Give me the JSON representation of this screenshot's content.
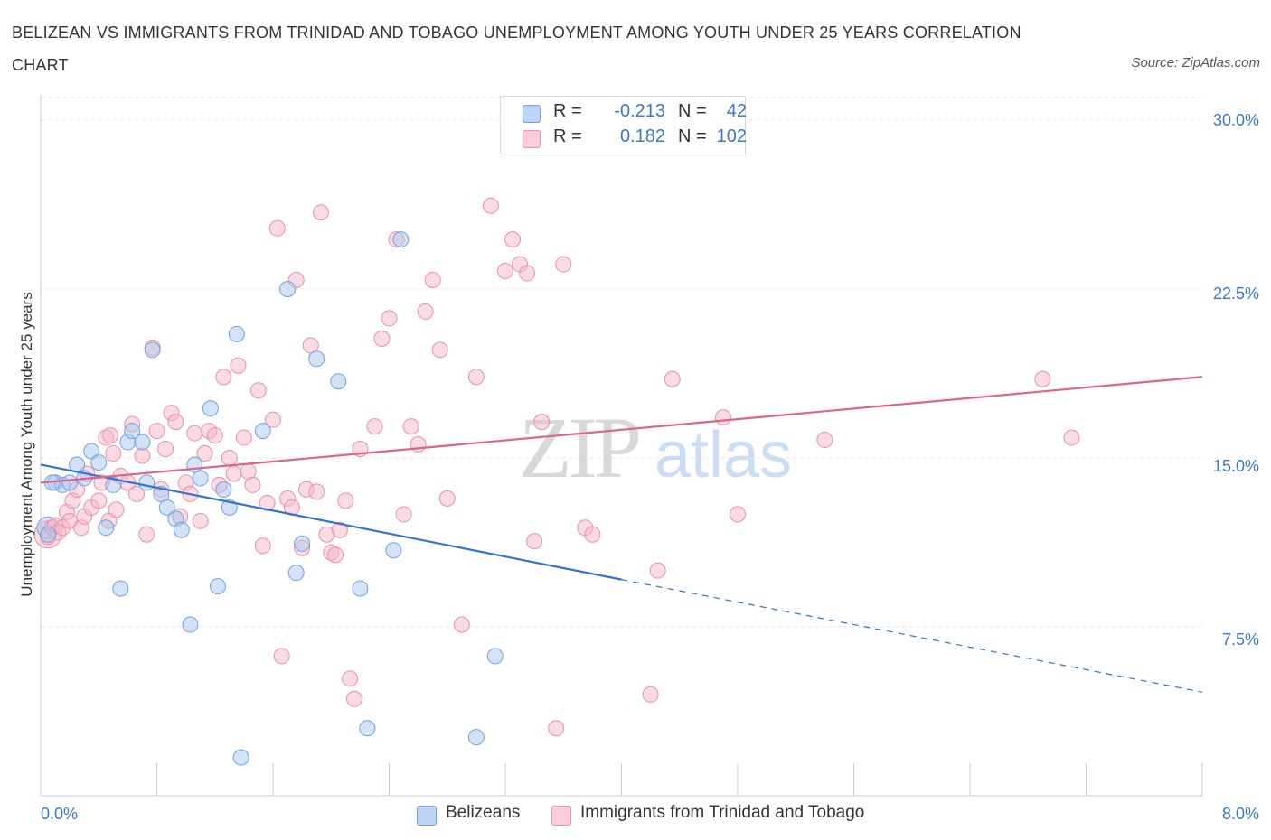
{
  "title": "BELIZEAN VS IMMIGRANTS FROM TRINIDAD AND TOBAGO UNEMPLOYMENT AMONG YOUTH UNDER 25 YEARS CORRELATION CHART",
  "source": "Source: ZipAtlas.com",
  "watermark": {
    "zip": "ZIP",
    "atlas": "atlas"
  },
  "legend": {
    "rows": [
      {
        "r_label": "R =",
        "r_value": "-0.213",
        "n_label": "N =",
        "n_value": "42",
        "color": "#a8c8f0"
      },
      {
        "r_label": "R =",
        "r_value": "0.182",
        "n_label": "N =",
        "n_value": "102",
        "color": "#f5b8c8"
      }
    ]
  },
  "chart_data": {
    "type": "scatter",
    "title": "BELIZEAN VS IMMIGRANTS FROM TRINIDAD AND TOBAGO UNEMPLOYMENT AMONG YOUTH UNDER 25 YEARS CORRELATION CHART",
    "ylabel": "Unemployment Among Youth under 25 years",
    "xlabel": "",
    "xlim": [
      0,
      8
    ],
    "ylim": [
      0,
      30
    ],
    "x_tick_labels": [
      "0.0%",
      "8.0%"
    ],
    "y_tick_labels": [
      "30.0%",
      "22.5%",
      "15.0%",
      "7.5%"
    ],
    "y_ticks": [
      30,
      22.5,
      15,
      7.5
    ],
    "grid": true,
    "legend_position": "top-center",
    "series": [
      {
        "name": "Belizeans",
        "color": "#6fa1e6",
        "fill": "#a8c8f0",
        "trend": {
          "x": [
            0.0,
            4.0
          ],
          "y": [
            14.7,
            9.6
          ],
          "dashed_to": [
            8.0,
            4.6
          ],
          "color": "#2f74d0"
        },
        "points": [
          [
            0.05,
            11.6
          ],
          [
            0.1,
            13.9
          ],
          [
            0.15,
            13.8
          ],
          [
            0.2,
            13.9
          ],
          [
            0.25,
            14.7
          ],
          [
            0.3,
            14.1
          ],
          [
            0.35,
            15.3
          ],
          [
            0.4,
            14.8
          ],
          [
            0.45,
            11.9
          ],
          [
            0.5,
            13.8
          ],
          [
            0.55,
            9.2
          ],
          [
            0.6,
            15.7
          ],
          [
            0.63,
            16.2
          ],
          [
            0.7,
            15.7
          ],
          [
            0.73,
            13.9
          ],
          [
            0.77,
            19.8
          ],
          [
            0.83,
            13.4
          ],
          [
            0.87,
            12.8
          ],
          [
            0.93,
            12.3
          ],
          [
            0.97,
            11.8
          ],
          [
            1.03,
            7.6
          ],
          [
            1.06,
            14.7
          ],
          [
            1.1,
            14.1
          ],
          [
            1.17,
            17.2
          ],
          [
            1.22,
            9.3
          ],
          [
            1.26,
            13.6
          ],
          [
            1.3,
            12.8
          ],
          [
            1.35,
            20.5
          ],
          [
            1.53,
            16.2
          ],
          [
            1.7,
            22.5
          ],
          [
            1.76,
            9.9
          ],
          [
            1.8,
            11.2
          ],
          [
            1.9,
            19.4
          ],
          [
            2.05,
            18.4
          ],
          [
            2.2,
            9.2
          ],
          [
            2.25,
            3.0
          ],
          [
            2.43,
            10.9
          ],
          [
            2.48,
            24.7
          ],
          [
            3.0,
            2.6
          ],
          [
            3.13,
            6.2
          ],
          [
            1.38,
            1.7
          ],
          [
            0.08,
            13.9
          ]
        ]
      },
      {
        "name": "Immigrants from Trinidad and Tobago",
        "color": "#ec8fab",
        "fill": "#f5b8c8",
        "trend": {
          "x": [
            0.0,
            8.0
          ],
          "y": [
            13.9,
            18.6
          ],
          "color": "#e0628a"
        },
        "points": [
          [
            0.05,
            11.5
          ],
          [
            0.08,
            11.9
          ],
          [
            0.1,
            12.0
          ],
          [
            0.12,
            11.7
          ],
          [
            0.15,
            11.9
          ],
          [
            0.18,
            12.6
          ],
          [
            0.2,
            12.2
          ],
          [
            0.22,
            13.1
          ],
          [
            0.25,
            13.6
          ],
          [
            0.28,
            11.9
          ],
          [
            0.3,
            12.4
          ],
          [
            0.32,
            14.3
          ],
          [
            0.35,
            12.8
          ],
          [
            0.4,
            13.1
          ],
          [
            0.42,
            13.9
          ],
          [
            0.45,
            15.9
          ],
          [
            0.47,
            12.2
          ],
          [
            0.5,
            15.2
          ],
          [
            0.52,
            12.7
          ],
          [
            0.55,
            14.2
          ],
          [
            0.6,
            13.9
          ],
          [
            0.63,
            16.5
          ],
          [
            0.66,
            13.4
          ],
          [
            0.7,
            15.1
          ],
          [
            0.73,
            11.6
          ],
          [
            0.77,
            19.9
          ],
          [
            0.8,
            16.2
          ],
          [
            0.83,
            13.6
          ],
          [
            0.86,
            15.4
          ],
          [
            0.9,
            17.0
          ],
          [
            0.93,
            16.6
          ],
          [
            0.96,
            12.4
          ],
          [
            1.0,
            13.9
          ],
          [
            1.03,
            13.4
          ],
          [
            1.06,
            16.1
          ],
          [
            1.1,
            12.2
          ],
          [
            1.13,
            15.2
          ],
          [
            1.16,
            16.2
          ],
          [
            1.2,
            16.0
          ],
          [
            1.23,
            13.8
          ],
          [
            1.26,
            18.6
          ],
          [
            1.3,
            15.0
          ],
          [
            1.33,
            14.3
          ],
          [
            1.36,
            19.1
          ],
          [
            1.4,
            15.9
          ],
          [
            1.43,
            14.4
          ],
          [
            1.46,
            13.8
          ],
          [
            1.5,
            18.0
          ],
          [
            1.53,
            11.1
          ],
          [
            1.56,
            13.0
          ],
          [
            1.6,
            16.7
          ],
          [
            1.63,
            25.2
          ],
          [
            1.66,
            6.2
          ],
          [
            1.7,
            13.2
          ],
          [
            1.73,
            12.8
          ],
          [
            1.76,
            22.9
          ],
          [
            1.8,
            11.0
          ],
          [
            1.83,
            13.6
          ],
          [
            1.86,
            20.0
          ],
          [
            1.9,
            13.5
          ],
          [
            1.93,
            25.9
          ],
          [
            1.97,
            11.6
          ],
          [
            2.0,
            10.8
          ],
          [
            2.03,
            10.7
          ],
          [
            2.06,
            11.8
          ],
          [
            2.1,
            13.1
          ],
          [
            2.13,
            5.2
          ],
          [
            2.16,
            4.3
          ],
          [
            2.2,
            15.4
          ],
          [
            2.3,
            16.4
          ],
          [
            2.35,
            20.3
          ],
          [
            2.4,
            21.2
          ],
          [
            2.45,
            24.7
          ],
          [
            2.5,
            12.5
          ],
          [
            2.55,
            16.4
          ],
          [
            2.6,
            15.6
          ],
          [
            2.65,
            21.5
          ],
          [
            2.7,
            22.9
          ],
          [
            2.75,
            19.8
          ],
          [
            2.8,
            13.2
          ],
          [
            2.9,
            7.6
          ],
          [
            3.0,
            18.6
          ],
          [
            3.1,
            26.2
          ],
          [
            3.2,
            23.3
          ],
          [
            3.25,
            24.7
          ],
          [
            3.3,
            23.6
          ],
          [
            3.35,
            23.2
          ],
          [
            3.4,
            11.3
          ],
          [
            3.45,
            16.6
          ],
          [
            3.55,
            3.0
          ],
          [
            3.6,
            23.6
          ],
          [
            3.75,
            11.9
          ],
          [
            3.8,
            11.6
          ],
          [
            4.2,
            4.5
          ],
          [
            4.25,
            10.0
          ],
          [
            4.35,
            18.5
          ],
          [
            4.7,
            16.8
          ],
          [
            4.8,
            12.5
          ],
          [
            5.4,
            15.8
          ],
          [
            6.9,
            18.5
          ],
          [
            7.1,
            15.9
          ],
          [
            0.48,
            16.0
          ]
        ]
      }
    ]
  },
  "bottom_legend": [
    {
      "label": "Belizeans",
      "color": "#a8c8f0"
    },
    {
      "label": "Immigrants from Trinidad and Tobago",
      "color": "#f5b8c8"
    }
  ]
}
